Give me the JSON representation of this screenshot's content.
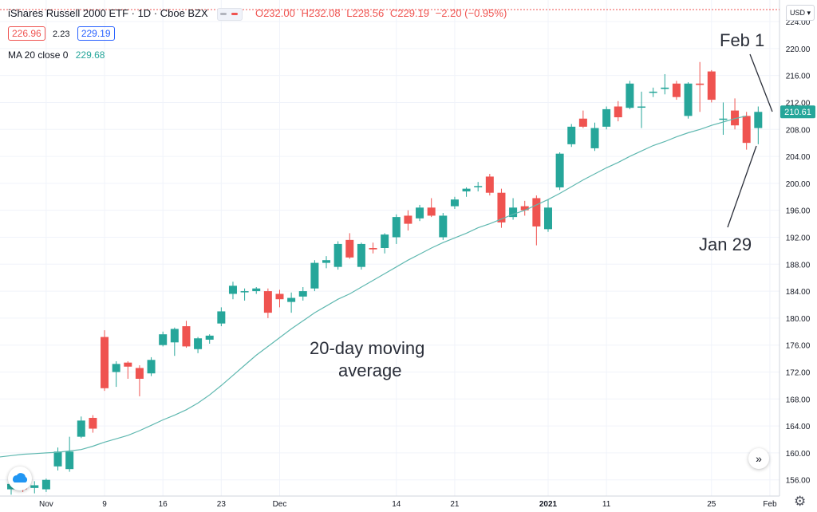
{
  "header": {
    "symbol": "iShares Russell 2000 ETF · 1D · Cboe BZX",
    "open": "O232.00",
    "high": "H232.08",
    "low": "L228.56",
    "close": "C229.19",
    "change": "−2.20 (−0.95%)"
  },
  "quote": {
    "bid": "226.96",
    "spread": "2.23",
    "ask": "229.19"
  },
  "indicator": {
    "label": "MA 20 close 0",
    "value": "229.68"
  },
  "currency": "USD",
  "annotations": {
    "feb1": "Feb 1",
    "jan29": "Jan 29",
    "ma_line1": "20-day moving",
    "ma_line2": "average"
  },
  "colors": {
    "up": "#26a69a",
    "down": "#ef5350",
    "ma": "#5fb8b0",
    "grid": "#f0f3fa",
    "axis_text": "#131722"
  },
  "chart_data": {
    "type": "candlestick",
    "y_axis_ticks": [
      156,
      160,
      164,
      168,
      172,
      176,
      180,
      184,
      188,
      192,
      196,
      200,
      204,
      208,
      212,
      216,
      220,
      224
    ],
    "ylim": [
      153.6,
      227.2
    ],
    "x_tick_labels": [
      {
        "label": "Nov",
        "index": 3
      },
      {
        "label": "9",
        "index": 8
      },
      {
        "label": "16",
        "index": 13
      },
      {
        "label": "23",
        "index": 18
      },
      {
        "label": "Dec",
        "index": 23
      },
      {
        "label": "14",
        "index": 33
      },
      {
        "label": "21",
        "index": 38
      },
      {
        "label": "2021",
        "index": 46
      },
      {
        "label": "11",
        "index": 51
      },
      {
        "label": "25",
        "index": 60
      },
      {
        "label": "Feb",
        "index": 65
      }
    ],
    "last_price": "210.61",
    "candles": [
      {
        "o": 154.6,
        "h": 156.2,
        "l": 153.8,
        "c": 155.4
      },
      {
        "o": 155.2,
        "h": 156.0,
        "l": 154.2,
        "c": 154.6
      },
      {
        "o": 154.8,
        "h": 155.8,
        "l": 154.0,
        "c": 155.2
      },
      {
        "o": 154.6,
        "h": 156.2,
        "l": 154.2,
        "c": 156.0
      },
      {
        "o": 158.0,
        "h": 160.8,
        "l": 157.4,
        "c": 160.2
      },
      {
        "o": 157.6,
        "h": 162.4,
        "l": 157.2,
        "c": 160.2
      },
      {
        "o": 162.4,
        "h": 165.4,
        "l": 162.2,
        "c": 164.8
      },
      {
        "o": 165.2,
        "h": 165.6,
        "l": 163.0,
        "c": 163.6
      },
      {
        "o": 177.2,
        "h": 178.2,
        "l": 169.2,
        "c": 169.6
      },
      {
        "o": 172.0,
        "h": 173.6,
        "l": 169.8,
        "c": 173.2
      },
      {
        "o": 173.4,
        "h": 173.6,
        "l": 171.0,
        "c": 172.8
      },
      {
        "o": 172.6,
        "h": 173.0,
        "l": 168.4,
        "c": 171.0
      },
      {
        "o": 171.8,
        "h": 174.2,
        "l": 171.4,
        "c": 173.8
      },
      {
        "o": 176.0,
        "h": 178.0,
        "l": 175.8,
        "c": 177.6
      },
      {
        "o": 176.4,
        "h": 178.6,
        "l": 174.4,
        "c": 178.4
      },
      {
        "o": 178.8,
        "h": 179.6,
        "l": 175.6,
        "c": 175.8
      },
      {
        "o": 175.4,
        "h": 177.2,
        "l": 174.8,
        "c": 177.0
      },
      {
        "o": 176.8,
        "h": 177.6,
        "l": 176.2,
        "c": 177.4
      },
      {
        "o": 179.2,
        "h": 181.6,
        "l": 178.8,
        "c": 181.0
      },
      {
        "o": 183.6,
        "h": 185.4,
        "l": 182.8,
        "c": 184.8
      },
      {
        "o": 184.0,
        "h": 184.4,
        "l": 182.6,
        "c": 184.0
      },
      {
        "o": 184.0,
        "h": 184.6,
        "l": 183.6,
        "c": 184.4
      },
      {
        "o": 184.0,
        "h": 184.4,
        "l": 180.0,
        "c": 180.8
      },
      {
        "o": 183.6,
        "h": 184.2,
        "l": 181.6,
        "c": 182.8
      },
      {
        "o": 182.4,
        "h": 183.8,
        "l": 180.8,
        "c": 183.0
      },
      {
        "o": 183.2,
        "h": 184.6,
        "l": 182.6,
        "c": 184.0
      },
      {
        "o": 184.4,
        "h": 188.6,
        "l": 184.0,
        "c": 188.2
      },
      {
        "o": 188.2,
        "h": 189.2,
        "l": 187.4,
        "c": 188.6
      },
      {
        "o": 187.6,
        "h": 191.4,
        "l": 187.2,
        "c": 191.0
      },
      {
        "o": 191.6,
        "h": 192.6,
        "l": 188.8,
        "c": 189.0
      },
      {
        "o": 187.6,
        "h": 191.2,
        "l": 187.2,
        "c": 191.0
      },
      {
        "o": 190.4,
        "h": 191.2,
        "l": 189.6,
        "c": 190.2
      },
      {
        "o": 190.4,
        "h": 192.6,
        "l": 189.6,
        "c": 192.4
      },
      {
        "o": 192.0,
        "h": 195.4,
        "l": 191.0,
        "c": 195.0
      },
      {
        "o": 195.2,
        "h": 196.0,
        "l": 193.0,
        "c": 194.0
      },
      {
        "o": 194.8,
        "h": 196.8,
        "l": 194.4,
        "c": 196.4
      },
      {
        "o": 196.4,
        "h": 197.8,
        "l": 195.0,
        "c": 195.2
      },
      {
        "o": 192.0,
        "h": 195.6,
        "l": 191.6,
        "c": 195.2
      },
      {
        "o": 196.6,
        "h": 198.0,
        "l": 196.2,
        "c": 197.6
      },
      {
        "o": 198.8,
        "h": 199.4,
        "l": 198.0,
        "c": 199.2
      },
      {
        "o": 199.6,
        "h": 200.2,
        "l": 198.8,
        "c": 199.6
      },
      {
        "o": 201.0,
        "h": 201.4,
        "l": 198.2,
        "c": 198.6
      },
      {
        "o": 198.6,
        "h": 199.2,
        "l": 193.4,
        "c": 194.2
      },
      {
        "o": 195.0,
        "h": 197.8,
        "l": 194.6,
        "c": 196.4
      },
      {
        "o": 196.6,
        "h": 197.4,
        "l": 195.2,
        "c": 196.0
      },
      {
        "o": 197.8,
        "h": 198.2,
        "l": 190.8,
        "c": 193.6
      },
      {
        "o": 193.2,
        "h": 197.6,
        "l": 192.8,
        "c": 196.4
      },
      {
        "o": 199.4,
        "h": 204.6,
        "l": 199.0,
        "c": 204.4
      },
      {
        "o": 205.8,
        "h": 208.8,
        "l": 205.4,
        "c": 208.4
      },
      {
        "o": 209.6,
        "h": 210.8,
        "l": 208.2,
        "c": 208.4
      },
      {
        "o": 205.2,
        "h": 209.0,
        "l": 204.8,
        "c": 208.2
      },
      {
        "o": 208.4,
        "h": 211.4,
        "l": 208.0,
        "c": 211.0
      },
      {
        "o": 211.4,
        "h": 212.2,
        "l": 209.2,
        "c": 209.8
      },
      {
        "o": 211.2,
        "h": 215.2,
        "l": 211.0,
        "c": 214.8
      },
      {
        "o": 211.4,
        "h": 213.6,
        "l": 208.2,
        "c": 211.4
      },
      {
        "o": 213.6,
        "h": 214.2,
        "l": 212.8,
        "c": 213.6
      },
      {
        "o": 214.0,
        "h": 216.2,
        "l": 213.2,
        "c": 214.2
      },
      {
        "o": 214.8,
        "h": 215.2,
        "l": 212.4,
        "c": 212.8
      },
      {
        "o": 210.0,
        "h": 215.0,
        "l": 209.6,
        "c": 214.8
      },
      {
        "o": 214.8,
        "h": 218.0,
        "l": 210.6,
        "c": 214.6
      },
      {
        "o": 216.6,
        "h": 216.8,
        "l": 212.0,
        "c": 212.4
      },
      {
        "o": 209.6,
        "h": 212.0,
        "l": 207.2,
        "c": 209.6
      },
      {
        "o": 210.8,
        "h": 212.6,
        "l": 208.0,
        "c": 208.6
      },
      {
        "o": 210.0,
        "h": 210.6,
        "l": 205.0,
        "c": 206.0
      },
      {
        "o": 208.2,
        "h": 211.4,
        "l": 205.8,
        "c": 210.6
      }
    ],
    "ma20": [
      159.4,
      159.6,
      159.8,
      159.9,
      160.0,
      160.1,
      160.3,
      160.5,
      161.0,
      161.6,
      162.1,
      162.6,
      163.3,
      164.1,
      164.9,
      165.6,
      166.4,
      167.4,
      168.6,
      170.0,
      171.5,
      173.0,
      174.5,
      175.8,
      177.1,
      178.4,
      179.6,
      180.8,
      181.8,
      182.8,
      183.6,
      184.6,
      185.6,
      186.6,
      187.6,
      188.6,
      189.5,
      190.4,
      191.2,
      191.9,
      192.6,
      193.4,
      194.0,
      194.7,
      195.4,
      196.0,
      196.8,
      197.6,
      198.5,
      199.5,
      200.5,
      201.4,
      202.3,
      203.1,
      204.0,
      204.8,
      205.6,
      206.2,
      206.9,
      207.5,
      208.0,
      208.6,
      209.1,
      209.6,
      210.0
    ]
  }
}
